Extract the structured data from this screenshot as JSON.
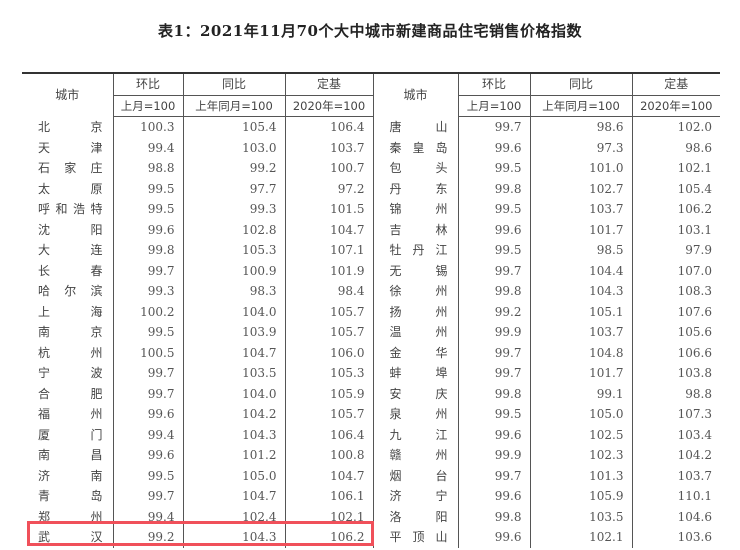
{
  "title": "表1：2021年11月70个大中城市新建商品住宅销售价格指数",
  "headers": {
    "city": "城市",
    "mom": "环比",
    "yoy": "同比",
    "base": "定基",
    "mom_sub": "上月=100",
    "yoy_sub": "上年同月=100",
    "base_sub": "2020年=100"
  },
  "highlight_color": "#f0505a",
  "left_rows": [
    [
      "北京",
      "100.3",
      "105.4",
      "106.4"
    ],
    [
      "天津",
      "99.4",
      "103.0",
      "103.7"
    ],
    [
      "石家庄",
      "98.8",
      "99.2",
      "100.7"
    ],
    [
      "太原",
      "99.5",
      "97.7",
      "97.2"
    ],
    [
      "呼和浩特",
      "99.5",
      "99.3",
      "101.5"
    ],
    [
      "沈阳",
      "99.6",
      "102.8",
      "104.7"
    ],
    [
      "大连",
      "99.8",
      "105.3",
      "107.1"
    ],
    [
      "长春",
      "99.7",
      "100.9",
      "101.9"
    ],
    [
      "哈尔滨",
      "99.3",
      "98.3",
      "98.4"
    ],
    [
      "上海",
      "100.2",
      "104.0",
      "105.7"
    ],
    [
      "南京",
      "99.5",
      "103.9",
      "105.7"
    ],
    [
      "杭州",
      "100.5",
      "104.7",
      "106.0"
    ],
    [
      "宁波",
      "99.7",
      "103.5",
      "105.3"
    ],
    [
      "合肥",
      "99.7",
      "104.0",
      "105.9"
    ],
    [
      "福州",
      "99.6",
      "104.2",
      "105.7"
    ],
    [
      "厦门",
      "99.4",
      "104.3",
      "106.4"
    ],
    [
      "南昌",
      "99.6",
      "101.2",
      "100.8"
    ],
    [
      "济南",
      "99.5",
      "105.0",
      "104.7"
    ],
    [
      "青岛",
      "99.7",
      "104.7",
      "106.1"
    ],
    [
      "郑州",
      "99.4",
      "102.4",
      "102.1"
    ],
    [
      "武汉",
      "99.2",
      "104.3",
      "106.2"
    ]
  ],
  "right_rows": [
    [
      "唐山",
      "99.7",
      "98.6",
      "102.0"
    ],
    [
      "秦皇岛",
      "99.6",
      "97.3",
      "98.6"
    ],
    [
      "包头",
      "99.5",
      "101.0",
      "102.1"
    ],
    [
      "丹东",
      "99.8",
      "102.7",
      "105.4"
    ],
    [
      "锦州",
      "99.5",
      "103.7",
      "106.2"
    ],
    [
      "吉林",
      "99.6",
      "101.7",
      "103.1"
    ],
    [
      "牡丹江",
      "99.5",
      "98.5",
      "97.9"
    ],
    [
      "无锡",
      "99.7",
      "104.4",
      "107.0"
    ],
    [
      "徐州",
      "99.8",
      "104.3",
      "108.3"
    ],
    [
      "扬州",
      "99.2",
      "105.1",
      "107.6"
    ],
    [
      "温州",
      "99.9",
      "103.7",
      "105.6"
    ],
    [
      "金华",
      "99.7",
      "104.8",
      "106.6"
    ],
    [
      "蚌埠",
      "99.7",
      "101.7",
      "103.8"
    ],
    [
      "安庆",
      "99.8",
      "99.1",
      "98.8"
    ],
    [
      "泉州",
      "99.5",
      "105.0",
      "107.3"
    ],
    [
      "九江",
      "99.6",
      "102.5",
      "103.4"
    ],
    [
      "赣州",
      "99.9",
      "102.3",
      "104.2"
    ],
    [
      "烟台",
      "99.7",
      "101.3",
      "103.7"
    ],
    [
      "济宁",
      "99.6",
      "105.9",
      "110.1"
    ],
    [
      "洛阳",
      "99.8",
      "103.5",
      "104.6"
    ],
    [
      "平顶山",
      "99.6",
      "102.1",
      "103.6"
    ]
  ]
}
